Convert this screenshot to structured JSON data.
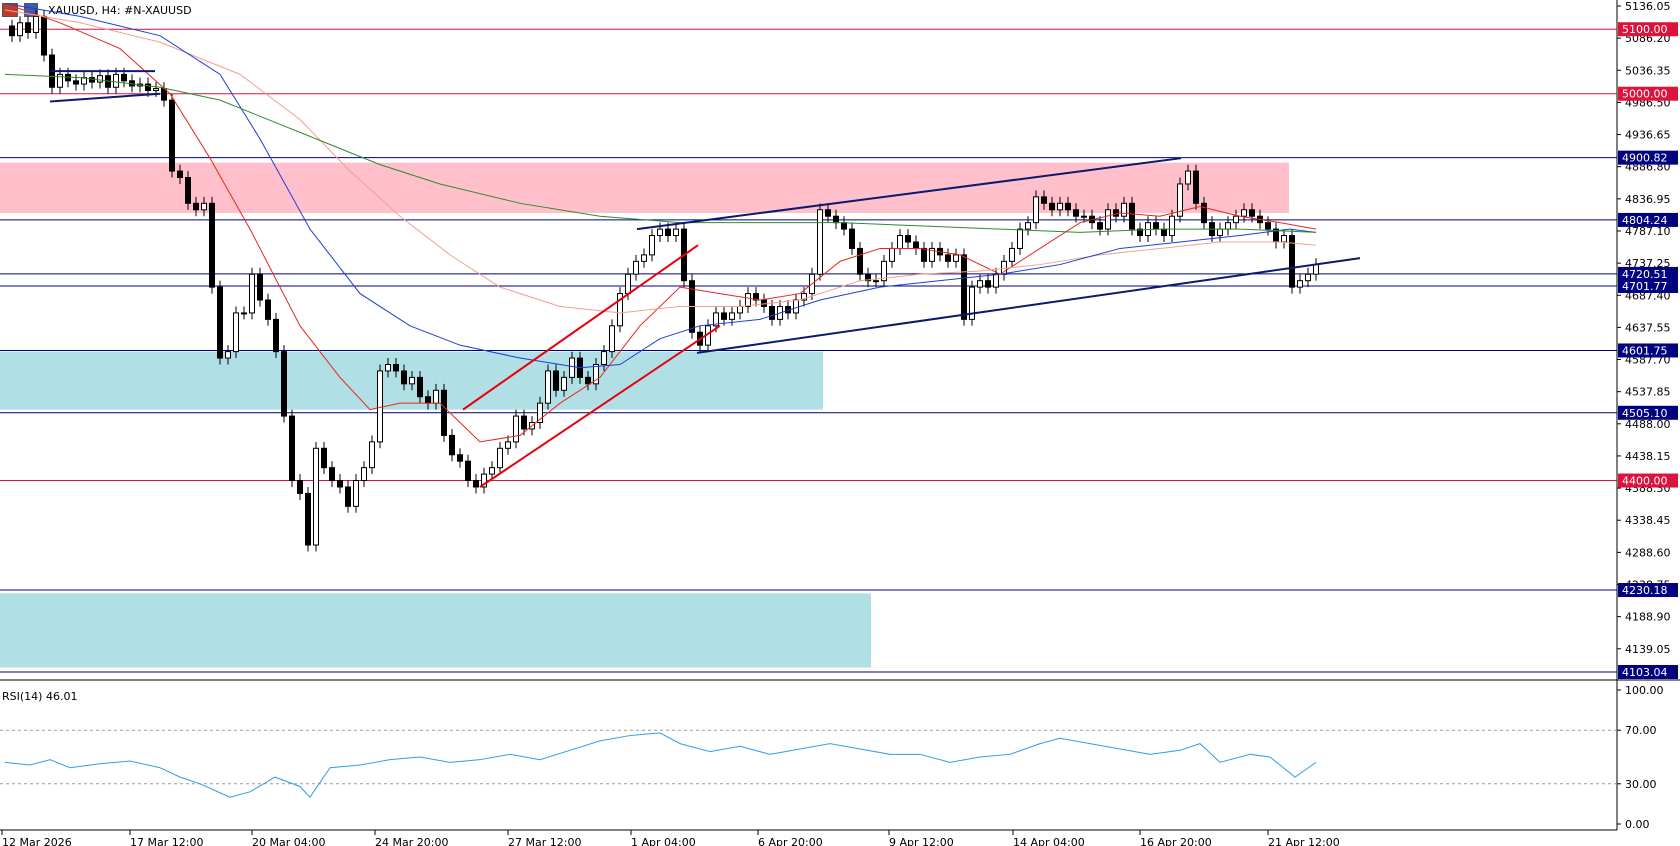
{
  "header": {
    "symbol_text": "XAUUSD, H4:  #N-XAUUSD"
  },
  "price_axis": {
    "labels": [
      "5136.05",
      "5086.20",
      "5036.35",
      "4986.50",
      "4936.65",
      "4886.80",
      "4836.95",
      "4787.10",
      "4737.25",
      "4687.40",
      "4637.55",
      "4587.70",
      "4537.85",
      "4488.00",
      "4438.15",
      "4388.30",
      "4338.45",
      "4288.60",
      "4238.75",
      "4188.90",
      "4139.05"
    ],
    "min": 4103.04,
    "max": 5136.05
  },
  "levels": [
    {
      "label": "5100.00",
      "value": 5100.0,
      "color": "#dc143c"
    },
    {
      "label": "5000.00",
      "value": 5000.0,
      "color": "#dc143c"
    },
    {
      "label": "4900.82",
      "value": 4900.82,
      "color": "#000080"
    },
    {
      "label": "4804.24",
      "value": 4804.24,
      "color": "#000080"
    },
    {
      "label": "4720.51",
      "value": 4720.51,
      "color": "#000080"
    },
    {
      "label": "4701.77",
      "value": 4701.77,
      "color": "#000080"
    },
    {
      "label": "4601.75",
      "value": 4601.75,
      "color": "#000080"
    },
    {
      "label": "4505.10",
      "value": 4505.1,
      "color": "#000080"
    },
    {
      "label": "4400.00",
      "value": 4400.0,
      "color": "#dc143c"
    },
    {
      "label": "4230.18",
      "value": 4230.18,
      "color": "#000080"
    },
    {
      "label": "4103.04",
      "value": 4103.04,
      "color": "#000080"
    }
  ],
  "zones": [
    {
      "from": 4815,
      "to": 4893,
      "color": "#ffc0cb"
    },
    {
      "from": 4510,
      "to": 4600,
      "color": "#b0dfe5"
    },
    {
      "from": 4110,
      "to": 4225,
      "color": "#b0dfe5"
    }
  ],
  "rsi": {
    "label": "RSI(14) 46.01",
    "axis_labels": [
      "100.00",
      "70.00",
      "30.00",
      "0.00"
    ]
  },
  "time_axis": {
    "labels": [
      "12 Mar 2026",
      "17 Mar 12:00",
      "20 Mar 04:00",
      "24 Mar 20:00",
      "27 Mar 12:00",
      "1 Apr 04:00",
      "6 Apr 20:00",
      "9 Apr 12:00",
      "14 Apr 04:00",
      "16 Apr 20:00",
      "21 Apr 12:00"
    ]
  },
  "colors": {
    "grid": "#000000",
    "bull": "#ffffff",
    "bear": "#000000",
    "ma_red": "#e8271b",
    "ma_lightred": "#f4a090",
    "ma_blue": "#1a3fd8",
    "ma_green": "#2e8b2e",
    "channel_red": "#e8000b",
    "channel_navy": "#0b1a6e",
    "rsi_line": "#2e9fe8"
  },
  "icons": [
    "chart-type-icon",
    "chart-settings-icon"
  ]
}
